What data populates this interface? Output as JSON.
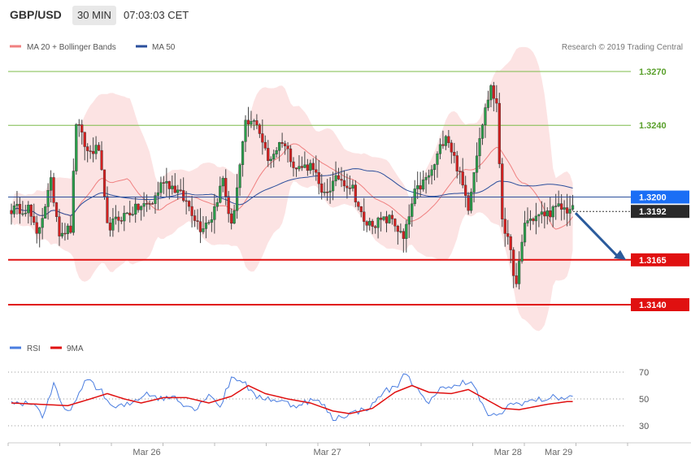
{
  "header": {
    "pair": "GBP/USD",
    "timeframe": "30 MIN",
    "time": "07:03:03 CET"
  },
  "legend_top": {
    "bollinger_label": "MA 20 + Bollinger Bands",
    "ma50_label": "MA 50",
    "copyright": "Research © 2019 Trading Central"
  },
  "legend_rsi": {
    "rsi_label": "RSI",
    "ma9_label": "9MA"
  },
  "colors": {
    "bull": "#2a9d4a",
    "bear": "#d42020",
    "bb": "#f08080",
    "ma50": "#2b4f9c",
    "resistance": "#7dbb4a",
    "support": "#e01010",
    "rsi": "#4a7de0",
    "rsi_ma": "#e01010",
    "arrow": "#2b5b9c"
  },
  "chart_data": {
    "type": "candlestick",
    "price_axis": {
      "ticks": [
        1.327,
        1.324,
        1.32,
        1.3192,
        1.3165,
        1.314
      ]
    },
    "levels": [
      {
        "label": "1.3270",
        "value": 1.327,
        "kind": "resistance"
      },
      {
        "label": "1.3240",
        "value": 1.324,
        "kind": "resistance"
      },
      {
        "label": "1.3165",
        "value": 1.3165,
        "kind": "support"
      },
      {
        "label": "1.3140",
        "value": 1.314,
        "kind": "support"
      }
    ],
    "tags": [
      {
        "label": "1.3200",
        "value": 1.32,
        "kind": "ma50"
      },
      {
        "label": "1.3192",
        "value": 1.3192,
        "kind": "last"
      }
    ],
    "forecast_arrow": {
      "from": 1.3192,
      "to": 1.3165
    },
    "dates": [
      {
        "label": "Mar 26",
        "index": 48
      },
      {
        "label": "Mar 27",
        "index": 112
      },
      {
        "label": "Mar 28",
        "index": 176
      },
      {
        "label": "Mar 29",
        "index": 194
      }
    ],
    "candles": {
      "count": 200,
      "anchors": [
        [
          0,
          1.3193
        ],
        [
          6,
          1.3194
        ],
        [
          9,
          1.3178
        ],
        [
          14,
          1.3208
        ],
        [
          17,
          1.3181
        ],
        [
          21,
          1.3182
        ],
        [
          23,
          1.3242
        ],
        [
          27,
          1.3225
        ],
        [
          31,
          1.3227
        ],
        [
          34,
          1.3183
        ],
        [
          39,
          1.3189
        ],
        [
          45,
          1.3194
        ],
        [
          50,
          1.3197
        ],
        [
          54,
          1.321
        ],
        [
          59,
          1.3203
        ],
        [
          63,
          1.3195
        ],
        [
          67,
          1.3183
        ],
        [
          71,
          1.3189
        ],
        [
          75,
          1.321
        ],
        [
          78,
          1.3183
        ],
        [
          83,
          1.324
        ],
        [
          87,
          1.3242
        ],
        [
          91,
          1.322
        ],
        [
          96,
          1.3232
        ],
        [
          101,
          1.3216
        ],
        [
          107,
          1.3218
        ],
        [
          110,
          1.32
        ],
        [
          116,
          1.3211
        ],
        [
          121,
          1.3205
        ],
        [
          125,
          1.3185
        ],
        [
          130,
          1.3186
        ],
        [
          135,
          1.3188
        ],
        [
          139,
          1.3176
        ],
        [
          143,
          1.3202
        ],
        [
          149,
          1.3214
        ],
        [
          154,
          1.3236
        ],
        [
          158,
          1.3217
        ],
        [
          162,
          1.3195
        ],
        [
          166,
          1.3235
        ],
        [
          170,
          1.3262
        ],
        [
          172,
          1.325
        ],
        [
          174,
          1.3189
        ],
        [
          177,
          1.3168
        ],
        [
          179,
          1.315
        ],
        [
          182,
          1.3186
        ],
        [
          186,
          1.3189
        ],
        [
          190,
          1.3191
        ],
        [
          194,
          1.3194
        ],
        [
          197,
          1.3193
        ]
      ]
    },
    "rsi": {
      "ticks": [
        70,
        50,
        30
      ],
      "anchors": [
        [
          0,
          47
        ],
        [
          8,
          47
        ],
        [
          11,
          37
        ],
        [
          15,
          60
        ],
        [
          19,
          40
        ],
        [
          23,
          48
        ],
        [
          27,
          66
        ],
        [
          32,
          55
        ],
        [
          36,
          43
        ],
        [
          42,
          46
        ],
        [
          48,
          55
        ],
        [
          53,
          50
        ],
        [
          58,
          52
        ],
        [
          62,
          45
        ],
        [
          66,
          43
        ],
        [
          70,
          55
        ],
        [
          74,
          44
        ],
        [
          78,
          66
        ],
        [
          82,
          64
        ],
        [
          86,
          52
        ],
        [
          90,
          51
        ],
        [
          96,
          48
        ],
        [
          100,
          45
        ],
        [
          106,
          49
        ],
        [
          110,
          47
        ],
        [
          114,
          35
        ],
        [
          118,
          38
        ],
        [
          122,
          40
        ],
        [
          128,
          45
        ],
        [
          132,
          56
        ],
        [
          136,
          58
        ],
        [
          140,
          70
        ],
        [
          144,
          56
        ],
        [
          148,
          45
        ],
        [
          152,
          60
        ],
        [
          156,
          57
        ],
        [
          160,
          64
        ],
        [
          164,
          60
        ],
        [
          168,
          40
        ],
        [
          172,
          36
        ],
        [
          176,
          45
        ],
        [
          180,
          47
        ],
        [
          186,
          49
        ],
        [
          192,
          51
        ],
        [
          197,
          51
        ]
      ],
      "ma_anchors": [
        [
          0,
          47
        ],
        [
          10,
          46
        ],
        [
          20,
          45
        ],
        [
          28,
          50
        ],
        [
          34,
          54
        ],
        [
          40,
          50
        ],
        [
          46,
          47
        ],
        [
          54,
          51
        ],
        [
          62,
          51
        ],
        [
          70,
          47
        ],
        [
          78,
          52
        ],
        [
          84,
          60
        ],
        [
          90,
          54
        ],
        [
          98,
          50
        ],
        [
          106,
          47
        ],
        [
          114,
          41
        ],
        [
          120,
          39
        ],
        [
          128,
          43
        ],
        [
          136,
          55
        ],
        [
          142,
          60
        ],
        [
          148,
          55
        ],
        [
          156,
          54
        ],
        [
          162,
          57
        ],
        [
          168,
          50
        ],
        [
          174,
          43
        ],
        [
          180,
          42
        ],
        [
          190,
          46
        ],
        [
          197,
          48
        ]
      ]
    }
  }
}
